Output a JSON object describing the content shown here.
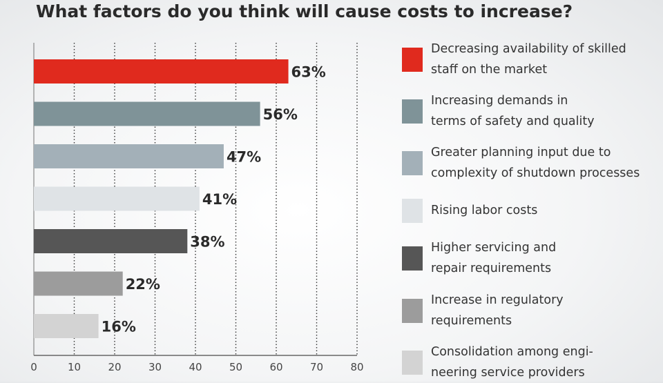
{
  "chart_data": {
    "type": "bar",
    "orientation": "horizontal",
    "title": "What factors do you think will cause costs to increase?",
    "xlabel": "",
    "ylabel": "",
    "xlim": [
      0,
      80
    ],
    "x_ticks": [
      "0",
      "10",
      "20",
      "30",
      "40",
      "50",
      "60",
      "70",
      "80"
    ],
    "grid": true,
    "legend_position": "right",
    "categories": [
      "Decreasing availability of skilled\nstaff on the market",
      "Increasing demands in\nterms of safety and quality",
      "Greater planning input due to\ncomplexity of shutdown processes",
      "Rising labor costs",
      "Higher servicing and\nrepair requirements",
      "Increase in regulatory\nrequirements",
      "Consolidation among engi-\nneering service providers"
    ],
    "values": [
      63,
      56,
      47,
      41,
      38,
      22,
      16
    ],
    "value_labels": [
      "63%",
      "56%",
      "47%",
      "41%",
      "38%",
      "22%",
      "16%"
    ],
    "colors": [
      "#e02a1e",
      "#7f9398",
      "#a3b0b8",
      "#dfe3e6",
      "#565656",
      "#9c9c9c",
      "#d3d3d3"
    ]
  }
}
